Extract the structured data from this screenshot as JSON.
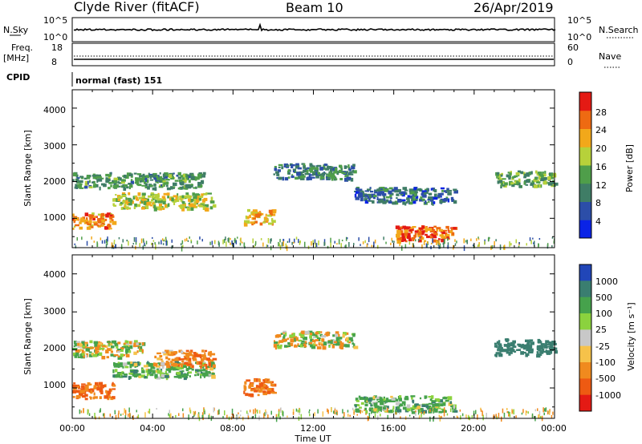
{
  "header": {
    "station": "Clyde River (fitACF)",
    "beam": "Beam 10",
    "date": "26/Apr/2019"
  },
  "strips": {
    "sky_label": "N.Sky",
    "search_label": "N.Search",
    "sky_ticks": [
      "10^5",
      "10^0"
    ],
    "search_ticks": [
      "10^5",
      "10^0"
    ],
    "freq_label": [
      "Freq.",
      "[MHz]"
    ],
    "freq_ticks": [
      "18",
      "8"
    ],
    "nave_label": "Nave",
    "nave_ticks": [
      "60",
      "0"
    ],
    "cpid_label": "CPID",
    "cpid_value": "normal (fast) 151"
  },
  "axes": {
    "ylabel": "Slant Range [km]",
    "xlabel": "Time UT",
    "xticks": [
      "00:00",
      "04:00",
      "08:00",
      "12:00",
      "16:00",
      "20:00",
      "00:00"
    ],
    "yticks": [
      "1000",
      "2000",
      "3000",
      "4000"
    ]
  },
  "power_scale": {
    "label": "Power [dB]",
    "ticks": [
      "4",
      "8",
      "12",
      "16",
      "20",
      "24",
      "28"
    ],
    "colors": [
      "#0a23e6",
      "#2c4ea8",
      "#3f7d66",
      "#4f9e4a",
      "#b7d13a",
      "#f2a81a",
      "#ee6a12",
      "#e41a14"
    ]
  },
  "velocity_scale": {
    "label": "Velocity [m s⁻¹]",
    "ticks": [
      "1000",
      "500",
      "100",
      "25",
      "-25",
      "-100",
      "-500",
      "-1000"
    ],
    "colors": [
      "#2146b8",
      "#3a7e70",
      "#46a24c",
      "#8bd23e",
      "#c8c8c8",
      "#f6c24a",
      "#f08a1e",
      "#ee5a12",
      "#e41a14"
    ]
  },
  "chart_data": [
    {
      "type": "heatmap",
      "title": "Power",
      "xlabel": "Time UT",
      "ylabel": "Slant Range [km]",
      "xlim": [
        "00:00",
        "24:00"
      ],
      "ylim": [
        200,
        4500
      ],
      "colorbar": {
        "label": "Power [dB]",
        "range": [
          0,
          32
        ]
      },
      "regions": [
        {
          "t_start": 0.0,
          "t_end": 2.0,
          "range_km": 950,
          "value_db": 24
        },
        {
          "t_start": 0.0,
          "t_end": 6.5,
          "range_km": 2050,
          "value_db": 12
        },
        {
          "t_start": 2.0,
          "t_end": 7.0,
          "range_km": 1500,
          "value_db": 18
        },
        {
          "t_start": 8.5,
          "t_end": 10.0,
          "range_km": 1050,
          "value_db": 22
        },
        {
          "t_start": 10.0,
          "t_end": 14.0,
          "range_km": 2300,
          "value_db": 10
        },
        {
          "t_start": 14.0,
          "t_end": 19.0,
          "range_km": 1650,
          "value_db": 8
        },
        {
          "t_start": 16.0,
          "t_end": 19.0,
          "range_km": 600,
          "value_db": 26
        },
        {
          "t_start": 21.0,
          "t_end": 24.0,
          "range_km": 2100,
          "value_db": 14
        }
      ]
    },
    {
      "type": "heatmap",
      "title": "Velocity",
      "xlabel": "Time UT",
      "ylabel": "Slant Range [km]",
      "xlim": [
        "00:00",
        "24:00"
      ],
      "ylim": [
        200,
        4500
      ],
      "colorbar": {
        "label": "Velocity [m s⁻¹]",
        "range": [
          -1000,
          1000
        ]
      },
      "regions": [
        {
          "t_start": 0.0,
          "t_end": 2.0,
          "range_km": 950,
          "value_ms": -300
        },
        {
          "t_start": 0.0,
          "t_end": 3.5,
          "range_km": 2050,
          "value_ms": 0
        },
        {
          "t_start": 2.0,
          "t_end": 7.0,
          "range_km": 1500,
          "value_ms": 150
        },
        {
          "t_start": 4.0,
          "t_end": 7.0,
          "range_km": 1800,
          "value_ms": -200
        },
        {
          "t_start": 8.5,
          "t_end": 10.0,
          "range_km": 1050,
          "value_ms": -300
        },
        {
          "t_start": 10.0,
          "t_end": 14.0,
          "range_km": 2300,
          "value_ms": 0
        },
        {
          "t_start": 14.0,
          "t_end": 19.0,
          "range_km": 600,
          "value_ms": 150
        },
        {
          "t_start": 21.0,
          "t_end": 24.0,
          "range_km": 2100,
          "value_ms": 500
        }
      ]
    }
  ]
}
